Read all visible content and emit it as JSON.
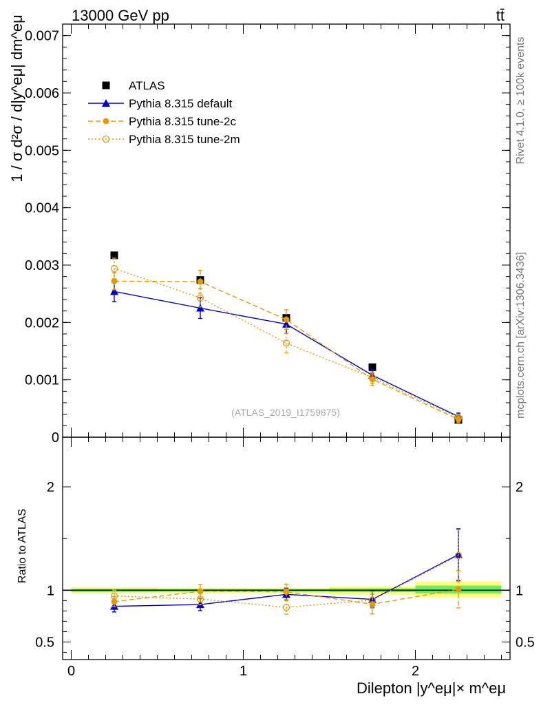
{
  "header": {
    "energy_label": "13000 GeV pp",
    "process_label": "tt̄",
    "watermark": "(ATLAS_2019_I1759875)",
    "side_top": "Rivet 4.1.0, ≥ 100k events",
    "side_bottom": "mcplots.cern.ch [arXiv:1306.3436]"
  },
  "colors": {
    "data": "#000000",
    "default": "#0000cc",
    "tune": "#e39a05",
    "band_inner": "#66ee66",
    "band_outer": "#ffff77"
  },
  "chart_data": [
    {
      "type": "scatter",
      "panel": "main",
      "ylabel": "1 / σ  d²σ / d|y^eμ| dm^eμ",
      "ylim": [
        0,
        0.0072
      ],
      "xlim": [
        -0.05,
        2.55
      ],
      "y_ticks": [
        0,
        0.001,
        0.002,
        0.003,
        0.004,
        0.005,
        0.006,
        0.007
      ],
      "y_tick_labels": [
        "0",
        "0.001",
        "0.002",
        "0.003",
        "0.004",
        "0.005",
        "0.006",
        "0.007"
      ],
      "x": [
        0.25,
        0.75,
        1.25,
        1.75,
        2.25
      ],
      "series": [
        {
          "name": "ATLAS",
          "key": "data",
          "values": [
            0.00317,
            0.00274,
            0.00208,
            0.00122,
            0.0003
          ],
          "err": [
            5e-05,
            4e-05,
            3e-05,
            2e-05,
            1e-05
          ]
        },
        {
          "name": "Pythia 8.315 default",
          "key": "default",
          "values": [
            0.00254,
            0.00225,
            0.00197,
            0.00108,
            0.00036
          ],
          "err": [
            0.00018,
            0.00018,
            0.00016,
            0.0001,
            6e-05
          ]
        },
        {
          "name": "Pythia 8.315 tune-2c",
          "key": "tune2c",
          "values": [
            0.00272,
            0.00271,
            0.00205,
            0.00101,
            0.00031
          ],
          "err": [
            0.00015,
            0.0002,
            0.00017,
            0.00011,
            6e-05
          ]
        },
        {
          "name": "Pythia 8.315 tune-2m",
          "key": "tune2m",
          "values": [
            0.00294,
            0.00243,
            0.00164,
            0.00104,
            0.00034
          ],
          "err": [
            0.00018,
            0.00016,
            0.00017,
            0.0001,
            6e-05
          ]
        }
      ]
    },
    {
      "type": "scatter",
      "panel": "ratio",
      "ylabel": "Ratio to ATLAS",
      "xlabel": "Dilepton |y^eμ|× m^eμ",
      "ylim": [
        0.33,
        2.48
      ],
      "xlim": [
        -0.05,
        2.55
      ],
      "y_ticks": [
        0.5,
        1,
        2
      ],
      "y_tick_labels": [
        "0.5",
        "1",
        "2"
      ],
      "x_ticks": [
        0,
        1,
        2
      ],
      "x_tick_labels": [
        "0",
        "1",
        "2"
      ],
      "x": [
        0.25,
        0.75,
        1.25,
        1.75,
        2.25
      ],
      "bands": [
        {
          "x0": 0.0,
          "x1": 0.5,
          "inner": [
            0.985,
            1.015
          ],
          "outer": [
            0.97,
            1.03
          ]
        },
        {
          "x0": 0.5,
          "x1": 1.0,
          "inner": [
            0.988,
            1.012
          ],
          "outer": [
            0.975,
            1.025
          ]
        },
        {
          "x0": 1.0,
          "x1": 1.5,
          "inner": [
            0.988,
            1.012
          ],
          "outer": [
            0.975,
            1.025
          ]
        },
        {
          "x0": 1.5,
          "x1": 2.0,
          "inner": [
            0.982,
            1.018
          ],
          "outer": [
            0.963,
            1.037
          ]
        },
        {
          "x0": 2.0,
          "x1": 2.5,
          "inner": [
            0.97,
            1.045
          ],
          "outer": [
            0.935,
            1.085
          ]
        }
      ],
      "series": [
        {
          "name": "Pythia 8.315 default",
          "key": "default",
          "values": [
            0.845,
            0.862,
            0.96,
            0.912,
            1.345
          ],
          "err": [
            0.055,
            0.06,
            0.06,
            0.075,
            0.25
          ]
        },
        {
          "name": "Pythia 8.315 tune-2c",
          "key": "tune2c",
          "values": [
            0.89,
            0.99,
            0.985,
            0.865,
            1.01
          ],
          "err": [
            0.05,
            0.065,
            0.075,
            0.095,
            0.18
          ]
        },
        {
          "name": "Pythia 8.315 tune-2m",
          "key": "tune2m",
          "values": [
            0.945,
            0.915,
            0.835,
            0.905,
            1.335
          ],
          "err": [
            0.055,
            0.055,
            0.065,
            0.08,
            0.25
          ]
        }
      ]
    }
  ]
}
